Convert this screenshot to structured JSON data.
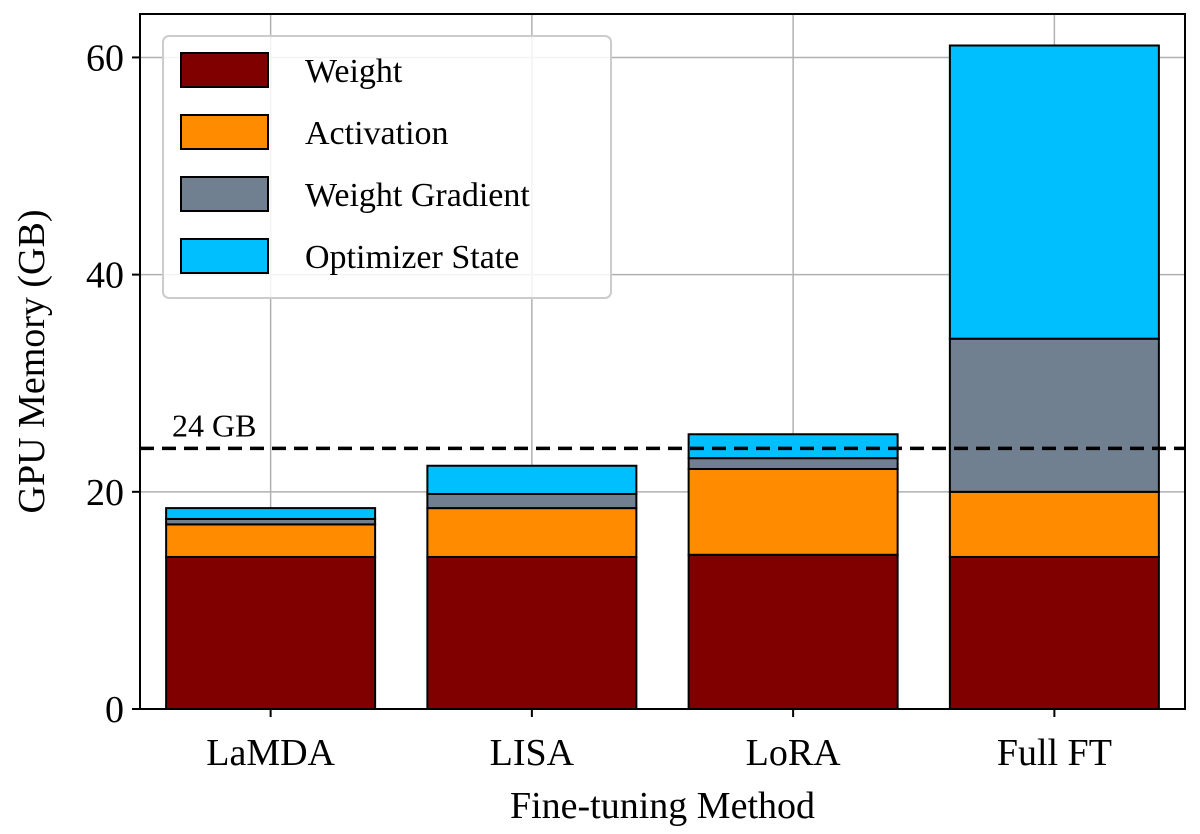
{
  "chart_data": {
    "type": "bar",
    "stacked": true,
    "title": "",
    "xlabel": "Fine-tuning Method",
    "ylabel": "GPU Memory (GB)",
    "categories": [
      "LaMDA",
      "LISA",
      "LoRA",
      "Full FT"
    ],
    "ylim": [
      0,
      64
    ],
    "yticks": [
      "0",
      "20",
      "40",
      "60"
    ],
    "grid": true,
    "legend_position": "upper-left",
    "series": [
      {
        "name": "Weight",
        "color": "#800000",
        "values": [
          14.0,
          14.0,
          14.2,
          14.0
        ]
      },
      {
        "name": "Activation",
        "color": "#ff8c00",
        "values": [
          3.0,
          4.5,
          7.9,
          6.0
        ]
      },
      {
        "name": "Weight Gradient",
        "color": "#708090",
        "values": [
          0.5,
          1.3,
          1.0,
          14.1
        ]
      },
      {
        "name": "Optimizer State",
        "color": "#00bfff",
        "values": [
          1.0,
          2.6,
          2.2,
          27.0
        ]
      }
    ],
    "reference_line": {
      "value": 24,
      "label": "24 GB",
      "style": "dashed",
      "color": "#000000"
    }
  }
}
